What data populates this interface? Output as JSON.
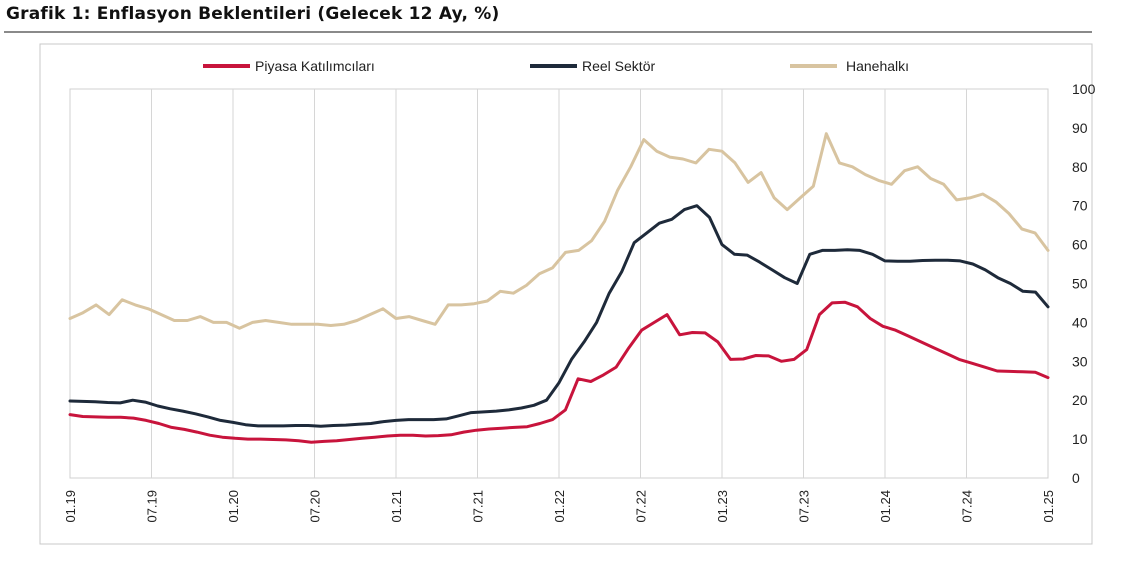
{
  "chart_data": {
    "type": "line",
    "title": "Grafik 1: Enflasyon Beklentileri (Gelecek 12 Ay, %)",
    "xlabel": "",
    "ylabel": "",
    "ylim": [
      0,
      100
    ],
    "yticks": [
      "0",
      "10",
      "20",
      "30",
      "40",
      "50",
      "60",
      "70",
      "80",
      "90",
      "100"
    ],
    "grid": "vertical",
    "legend": "top",
    "x_tick_labels": [
      "01.19",
      "07.19",
      "01.20",
      "07.20",
      "01.21",
      "07.21",
      "01.22",
      "07.22",
      "01.23",
      "07.23",
      "01.24",
      "07.24",
      "01.25"
    ],
    "series": [
      {
        "name": "Piyasa Katılımcıları",
        "color": "#c8143c",
        "values": [
          16.3,
          15.8,
          15.7,
          15.6,
          15.6,
          15.4,
          14.8,
          14.0,
          13.0,
          12.5,
          11.8,
          11.0,
          10.5,
          10.2,
          10.0,
          10.0,
          9.9,
          9.8,
          9.6,
          9.2,
          9.4,
          9.6,
          9.9,
          10.2,
          10.5,
          10.8,
          11.0,
          11.0,
          10.8,
          10.9,
          11.1,
          11.8,
          12.3,
          12.6,
          12.8,
          13.0,
          13.2,
          14.0,
          15.0,
          17.5,
          25.5,
          24.8,
          26.5,
          28.5,
          33.5,
          38.0,
          40.0,
          42.0,
          36.8,
          37.4,
          37.3,
          35.0,
          30.5,
          30.6,
          31.5,
          31.4,
          30.0,
          30.5,
          33.0,
          42.0,
          45.0,
          45.2,
          44.0,
          41.0,
          39.0,
          38.0,
          36.5,
          35.0,
          33.5,
          32.0,
          30.5,
          29.5,
          28.5,
          27.5,
          27.4,
          27.3,
          27.2,
          25.8
        ]
      },
      {
        "name": "Reel Sektör",
        "color": "#1e2a3a",
        "values": [
          19.8,
          19.7,
          19.6,
          19.4,
          19.3,
          20.0,
          19.5,
          18.5,
          17.8,
          17.2,
          16.5,
          15.7,
          14.8,
          14.3,
          13.7,
          13.4,
          13.4,
          13.4,
          13.5,
          13.5,
          13.3,
          13.5,
          13.6,
          13.8,
          14.0,
          14.5,
          14.8,
          15.0,
          15.0,
          15.0,
          15.2,
          16.0,
          16.8,
          17.0,
          17.2,
          17.5,
          18.0,
          18.7,
          20.0,
          24.5,
          30.5,
          35.0,
          40.0,
          47.5,
          53.0,
          60.5,
          63.0,
          65.5,
          66.5,
          69.0,
          70.0,
          67.0,
          60.0,
          57.5,
          57.3,
          55.5,
          53.5,
          51.5,
          50.0,
          57.5,
          58.5,
          58.5,
          58.7,
          58.5,
          57.5,
          55.8,
          55.7,
          55.7,
          55.9,
          56.0,
          56.0,
          55.8,
          55.0,
          53.5,
          51.5,
          50.0,
          48.0,
          47.8,
          44.0
        ]
      },
      {
        "name": "Hanehalkı",
        "color": "#d8c4a0",
        "values": [
          41.0,
          42.5,
          44.5,
          42.0,
          45.8,
          44.5,
          43.5,
          42.0,
          40.5,
          40.5,
          41.5,
          40.0,
          40.0,
          38.5,
          40.0,
          40.5,
          40.0,
          39.5,
          39.5,
          39.5,
          39.2,
          39.5,
          40.5,
          42.0,
          43.5,
          41.0,
          41.5,
          40.5,
          39.5,
          44.5,
          44.5,
          44.8,
          45.5,
          48.0,
          47.5,
          49.5,
          52.5,
          54.0,
          58.0,
          58.5,
          61.0,
          66.0,
          74.0,
          80.0,
          87.0,
          84.0,
          82.5,
          82.0,
          81.0,
          84.5,
          84.0,
          81.0,
          76.0,
          78.5,
          72.0,
          69.0,
          72.0,
          75.0,
          88.5,
          81.0,
          80.0,
          78.0,
          76.5,
          75.5,
          79.0,
          80.0,
          77.0,
          75.5,
          71.5,
          72.0,
          73.0,
          71.0,
          68.0,
          64.0,
          63.0,
          58.5
        ]
      }
    ]
  }
}
